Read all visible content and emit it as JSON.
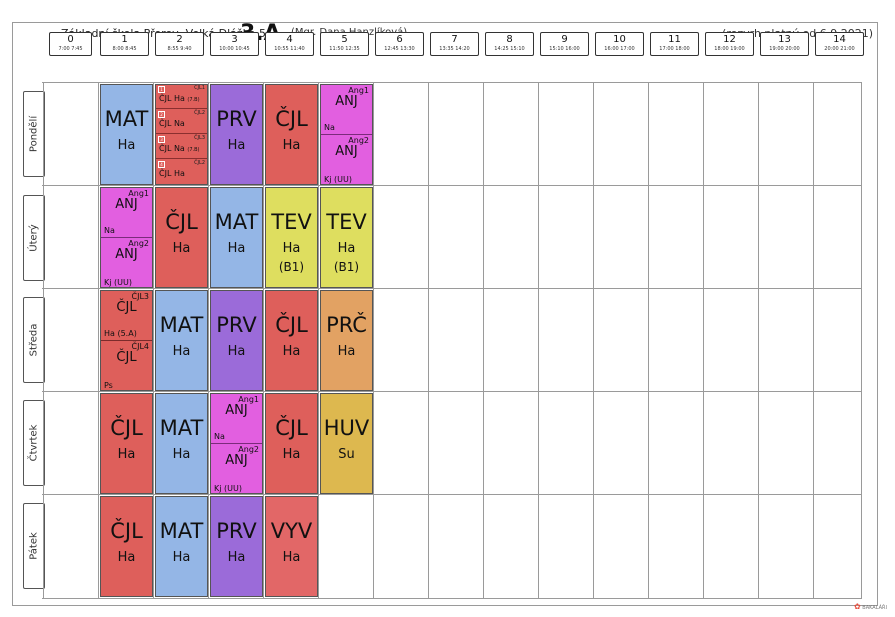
{
  "header": {
    "school": "Základní škola Přerov, Velká Dlážka 5",
    "class": "3.A",
    "teacher": "(Mgr. Dana Hanzlíková)",
    "valid": "(rozvrh platný od 6.9.2021)"
  },
  "periods": [
    {
      "num": "0",
      "time": "7:00  7:45"
    },
    {
      "num": "1",
      "time": "8:00  8:45"
    },
    {
      "num": "2",
      "time": "8:55  9:40"
    },
    {
      "num": "3",
      "time": "10:00 10:45"
    },
    {
      "num": "4",
      "time": "10:55 11:40"
    },
    {
      "num": "5",
      "time": "11:50 12:35"
    },
    {
      "num": "6",
      "time": "12:45 13:30"
    },
    {
      "num": "7",
      "time": "13:35 14:20"
    },
    {
      "num": "8",
      "time": "14:25 15:10"
    },
    {
      "num": "9",
      "time": "15:10 16:00"
    },
    {
      "num": "10",
      "time": "16:00 17:00"
    },
    {
      "num": "11",
      "time": "17:00 18:00"
    },
    {
      "num": "12",
      "time": "18:00 19:00"
    },
    {
      "num": "13",
      "time": "19:00 20:00"
    },
    {
      "num": "14",
      "time": "20:00 21:00"
    }
  ],
  "days": [
    "Pondělí",
    "Úterý",
    "Středa",
    "Čtvrtek",
    "Pátek"
  ],
  "colors": {
    "MAT": "#94b6e6",
    "CJL": "#de5f5b",
    "PRV": "#9b6bd9",
    "ANJ": "#e25fe0",
    "TEV": "#dede5f",
    "PRC": "#e2a263",
    "HUV": "#ddb84f",
    "VYV": "#e26767"
  },
  "lessons": {
    "mon": {
      "p1": {
        "subj": "MAT",
        "teacher": "Ha"
      },
      "p2": {
        "q1": {
          "box": "1",
          "group": "ČJL1",
          "label": "ČJL Ha",
          "room": "(7.B)"
        },
        "q2": {
          "box": "2",
          "group": "ČJL2",
          "label": "ČJL Na"
        },
        "q3": {
          "box": "3",
          "group": "ČJL3",
          "label": "ČJL Na",
          "room": "(7.B)"
        },
        "q4": {
          "box": "4",
          "group": "ČJL2",
          "label": "ČJL Ha"
        }
      },
      "p3": {
        "subj": "PRV",
        "teacher": "Ha"
      },
      "p4": {
        "subj": "ČJL",
        "teacher": "Ha"
      },
      "p5": {
        "a": {
          "group": "Ang1",
          "subj": "ANJ",
          "teacher": "Na"
        },
        "b": {
          "group": "Ang2",
          "subj": "ANJ",
          "teacher": "Kj   (UU)"
        }
      }
    },
    "tue": {
      "p1": {
        "a": {
          "group": "Ang1",
          "subj": "ANJ",
          "teacher": "Na"
        },
        "b": {
          "group": "Ang2",
          "subj": "ANJ",
          "teacher": "Kj   (UU)"
        }
      },
      "p2": {
        "subj": "ČJL",
        "teacher": "Ha"
      },
      "p3": {
        "subj": "MAT",
        "teacher": "Ha"
      },
      "p4": {
        "subj": "TEV",
        "teacher": "Ha",
        "room": "(B1)"
      },
      "p5": {
        "subj": "TEV",
        "teacher": "Ha",
        "room": "(B1)"
      }
    },
    "wed": {
      "p1": {
        "a": {
          "group": "ČJL3",
          "subj": "ČJL",
          "teacher": "Ha   (5.A)"
        },
        "b": {
          "group": "ČJL4",
          "subj": "ČJL",
          "teacher": "Ps"
        }
      },
      "p2": {
        "subj": "MAT",
        "teacher": "Ha"
      },
      "p3": {
        "subj": "PRV",
        "teacher": "Ha"
      },
      "p4": {
        "subj": "ČJL",
        "teacher": "Ha"
      },
      "p5": {
        "subj": "PRČ",
        "teacher": "Ha"
      }
    },
    "thu": {
      "p1": {
        "subj": "ČJL",
        "teacher": "Ha"
      },
      "p2": {
        "subj": "MAT",
        "teacher": "Ha"
      },
      "p3": {
        "a": {
          "group": "Ang1",
          "subj": "ANJ",
          "teacher": "Na"
        },
        "b": {
          "group": "Ang2",
          "subj": "ANJ",
          "teacher": "Kj   (UU)"
        }
      },
      "p4": {
        "subj": "ČJL",
        "teacher": "Ha"
      },
      "p5": {
        "subj": "HUV",
        "teacher": "Su"
      }
    },
    "fri": {
      "p1": {
        "subj": "ČJL",
        "teacher": "Ha"
      },
      "p2": {
        "subj": "MAT",
        "teacher": "Ha"
      },
      "p3": {
        "subj": "PRV",
        "teacher": "Ha"
      },
      "p4": {
        "subj": "VYV",
        "teacher": "Ha"
      }
    }
  },
  "footer": {
    "logo": "BAKALÁŘI"
  }
}
